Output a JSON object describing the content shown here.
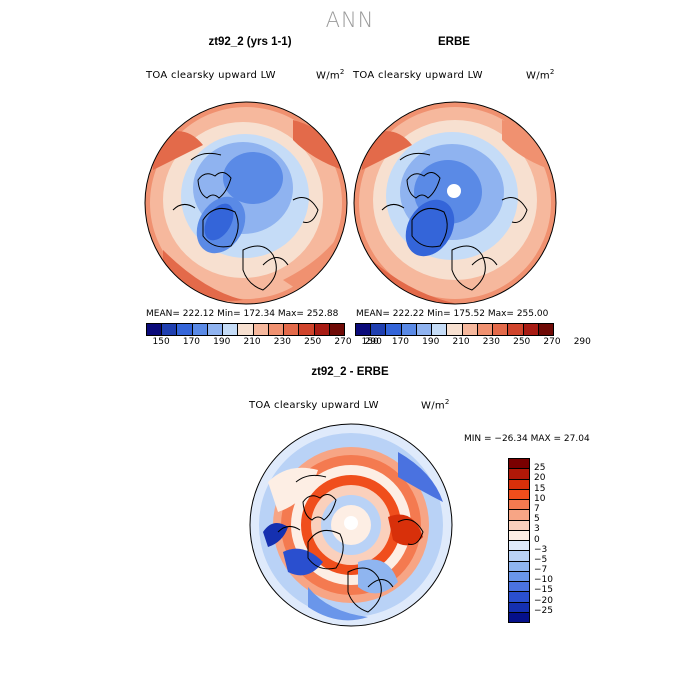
{
  "title": "ANN",
  "panels": [
    {
      "title": "zt92_2 (yrs 1-1)",
      "variable": "TOA clearsky upward LW",
      "units_base": "W/m",
      "units_exp": "2",
      "stats": "MEAN= 222.12   Min= 172.34   Max= 252.88"
    },
    {
      "title": "ERBE",
      "variable": "TOA clearsky upward LW",
      "units_base": "W/m",
      "units_exp": "2",
      "stats": "MEAN= 222.22   Min= 175.52   Max= 255.00"
    }
  ],
  "abs_colorbar": {
    "colors": [
      "#0a0a7a",
      "#1f3fb0",
      "#3465d9",
      "#5a8ae6",
      "#8fb3f0",
      "#c5dcf7",
      "#f7e0d0",
      "#f6b89d",
      "#f09170",
      "#e36a4a",
      "#d0442c",
      "#a81c14",
      "#6f0a06"
    ],
    "ticks": [
      "150",
      "170",
      "190",
      "210",
      "230",
      "250",
      "270",
      "290"
    ]
  },
  "diff_panel": {
    "title": "zt92_2 - ERBE",
    "variable": "TOA clearsky upward LW",
    "units_base": "W/m",
    "units_exp": "2",
    "minmax": "MIN = −26.34  MAX =  27.04"
  },
  "diff_colorbar": {
    "colors": [
      "#7a0000",
      "#b01808",
      "#d8300a",
      "#f04e1c",
      "#f47a50",
      "#f7a585",
      "#fad0bc",
      "#fdeee4",
      "#dfeafb",
      "#b9d2f6",
      "#8fb5f0",
      "#6a96ea",
      "#4a72e0",
      "#2a4fcf",
      "#1530b0",
      "#05108a"
    ],
    "ticks": [
      "25",
      "20",
      "15",
      "10",
      "7",
      "5",
      "3",
      "0",
      "−3",
      "−5",
      "−7",
      "−10",
      "−15",
      "−20",
      "−25"
    ]
  },
  "colors": {
    "land_outline": "#000000",
    "title_gray": "#9a9a9a"
  }
}
